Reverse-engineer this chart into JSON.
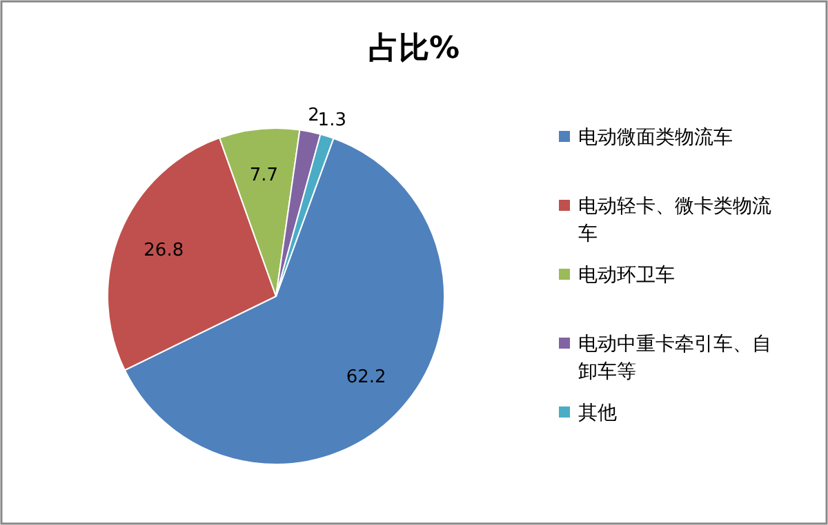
{
  "chart_data": {
    "type": "pie",
    "title": "占比%",
    "categories": [
      "电动微面类物流车",
      "电动轻卡、微卡类物流车",
      "电动环卫车",
      "电动中重卡牵引车、自卸车等",
      "其他"
    ],
    "values": [
      62.2,
      26.8,
      7.7,
      2,
      1.3
    ],
    "colors": [
      "#4f81bd",
      "#c0504d",
      "#9bbb59",
      "#8064a2",
      "#4bacc6"
    ],
    "data_labels": true,
    "legend": "right"
  }
}
